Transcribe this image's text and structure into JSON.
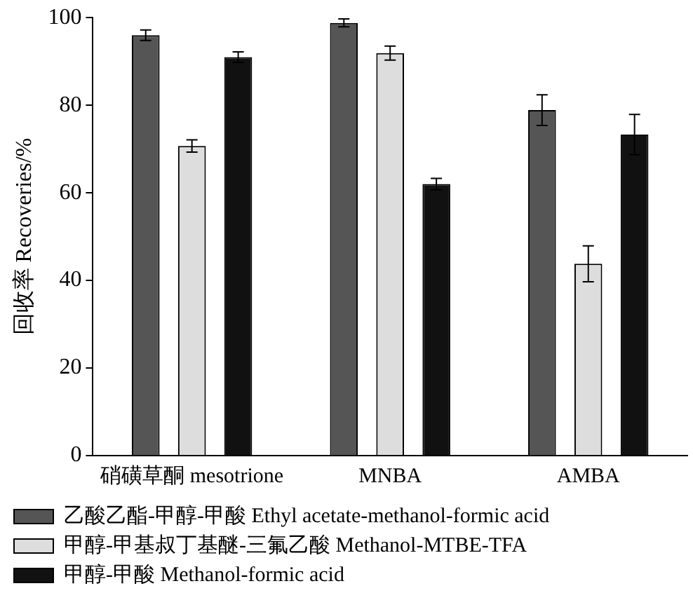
{
  "chart_data": {
    "type": "bar",
    "ylabel": "回收率 Recoveries/%",
    "categories": [
      "硝磺草酮 mesotrione",
      "MNBA",
      "AMBA"
    ],
    "series": [
      {
        "name": "乙酸乙酯-甲醇-甲酸 Ethyl acetate-methanol-formic acid",
        "color": "#555555",
        "values": [
          96,
          98.8,
          78.9
        ],
        "errors": [
          1.2,
          0.9,
          3.5
        ]
      },
      {
        "name": "甲醇-甲基叔丁基醚-三氟乙酸 Methanol-MTBE-TFA",
        "color": "#dddddd",
        "values": [
          70.7,
          91.9,
          43.8
        ],
        "errors": [
          1.4,
          1.6,
          4.1
        ]
      },
      {
        "name": "甲醇-甲酸 Methanol-formic acid",
        "color": "#111111",
        "values": [
          91,
          62,
          73.3
        ],
        "errors": [
          1.2,
          1.3,
          4.6
        ]
      }
    ],
    "ylim": [
      0,
      100
    ],
    "yticks": [
      0,
      20,
      40,
      60,
      80,
      100
    ],
    "grid": false,
    "legend": "bottom"
  }
}
